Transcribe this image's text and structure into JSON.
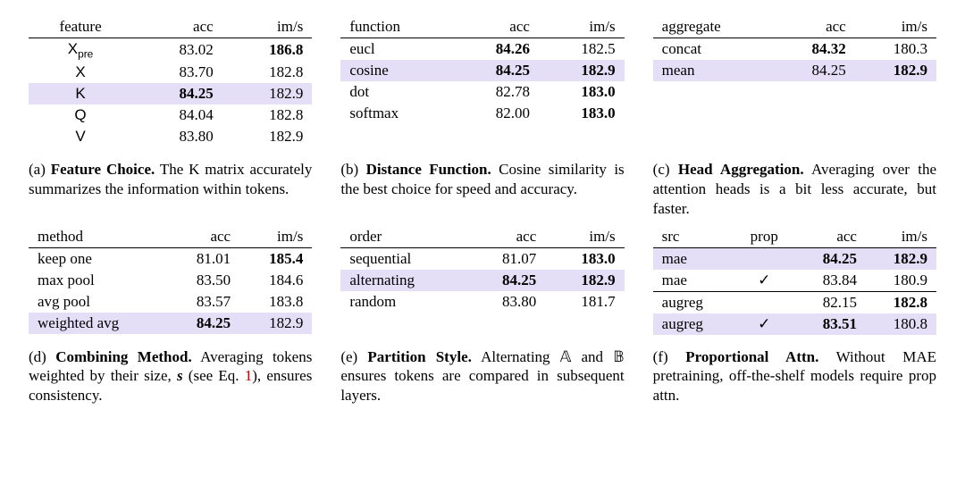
{
  "colors": {
    "highlight_bg": "#e4def6",
    "text": "#000000",
    "rule": "#000000",
    "ref_red": "#cc0000"
  },
  "typography": {
    "family": "Georgia / Times-like serif",
    "base_size_pt": 13,
    "caption_size_pt": 13,
    "line_height": 1.28
  },
  "panels": {
    "a": {
      "headers": [
        "feature",
        "acc",
        "im/s"
      ],
      "rows": [
        {
          "cells": [
            "Xpre",
            "83.02",
            "186.8"
          ],
          "bold": [
            false,
            false,
            true
          ],
          "hl": false,
          "feature_style": "x_sub_pre"
        },
        {
          "cells": [
            "X",
            "83.70",
            "182.8"
          ],
          "bold": [
            false,
            false,
            false
          ],
          "hl": false,
          "feature_style": "sans"
        },
        {
          "cells": [
            "K",
            "84.25",
            "182.9"
          ],
          "bold": [
            false,
            true,
            false
          ],
          "hl": true,
          "feature_style": "sans"
        },
        {
          "cells": [
            "Q",
            "84.04",
            "182.8"
          ],
          "bold": [
            false,
            false,
            false
          ],
          "hl": false,
          "feature_style": "sans"
        },
        {
          "cells": [
            "V",
            "83.80",
            "182.9"
          ],
          "bold": [
            false,
            false,
            false
          ],
          "hl": false,
          "feature_style": "sans"
        }
      ],
      "first_col_align": "center",
      "caption": {
        "tag": "(a)",
        "title": "Feature Choice.",
        "text": "The K matrix accurately summarizes the information within tokens."
      }
    },
    "b": {
      "headers": [
        "function",
        "acc",
        "im/s"
      ],
      "rows": [
        {
          "cells": [
            "eucl",
            "84.26",
            "182.5"
          ],
          "bold": [
            false,
            true,
            false
          ],
          "hl": false
        },
        {
          "cells": [
            "cosine",
            "84.25",
            "182.9"
          ],
          "bold": [
            false,
            true,
            true
          ],
          "hl": true
        },
        {
          "cells": [
            "dot",
            "82.78",
            "183.0"
          ],
          "bold": [
            false,
            false,
            true
          ],
          "hl": false
        },
        {
          "cells": [
            "softmax",
            "82.00",
            "183.0"
          ],
          "bold": [
            false,
            false,
            true
          ],
          "hl": false
        }
      ],
      "caption": {
        "tag": "(b)",
        "title": "Distance Function.",
        "text": "Cosine similarity is the best choice for speed and accuracy."
      }
    },
    "c": {
      "headers": [
        "aggregate",
        "acc",
        "im/s"
      ],
      "rows": [
        {
          "cells": [
            "concat",
            "84.32",
            "180.3"
          ],
          "bold": [
            false,
            true,
            false
          ],
          "hl": false
        },
        {
          "cells": [
            "mean",
            "84.25",
            "182.9"
          ],
          "bold": [
            false,
            false,
            true
          ],
          "hl": true
        }
      ],
      "caption": {
        "tag": "(c)",
        "title": "Head Aggregation.",
        "text": "Averaging over the attention heads is a bit less accurate, but faster."
      }
    },
    "d": {
      "headers": [
        "method",
        "acc",
        "im/s"
      ],
      "rows": [
        {
          "cells": [
            "keep one",
            "81.01",
            "185.4"
          ],
          "bold": [
            false,
            false,
            true
          ],
          "hl": false
        },
        {
          "cells": [
            "max pool",
            "83.50",
            "184.6"
          ],
          "bold": [
            false,
            false,
            false
          ],
          "hl": false
        },
        {
          "cells": [
            "avg pool",
            "83.57",
            "183.8"
          ],
          "bold": [
            false,
            false,
            false
          ],
          "hl": false
        },
        {
          "cells": [
            "weighted avg",
            "84.25",
            "182.9"
          ],
          "bold": [
            false,
            true,
            false
          ],
          "hl": true
        }
      ],
      "caption": {
        "tag": "(d)",
        "title": "Combining Method.",
        "text_html": "Averaging tokens weighted by their size, <b><i>s</i></b> (see Eq. <span class=\"redref\">1</span>), ensures consistency."
      }
    },
    "e": {
      "headers": [
        "order",
        "acc",
        "im/s"
      ],
      "rows": [
        {
          "cells": [
            "sequential",
            "81.07",
            "183.0"
          ],
          "bold": [
            false,
            false,
            true
          ],
          "hl": false
        },
        {
          "cells": [
            "alternating",
            "84.25",
            "182.9"
          ],
          "bold": [
            false,
            true,
            true
          ],
          "hl": true
        },
        {
          "cells": [
            "random",
            "83.80",
            "181.7"
          ],
          "bold": [
            false,
            false,
            false
          ],
          "hl": false
        }
      ],
      "caption": {
        "tag": "(e)",
        "title": "Partition Style.",
        "text_html": "Alternating <span class=\"dbl\">𝔸</span> and <span class=\"dbl\">𝔹</span> ensures tokens are compared in subsequent layers."
      }
    },
    "f": {
      "headers": [
        "src",
        "prop",
        "acc",
        "im/s"
      ],
      "rows": [
        {
          "cells": [
            "mae",
            "",
            "84.25",
            "182.9"
          ],
          "bold": [
            false,
            false,
            true,
            true
          ],
          "hl": true
        },
        {
          "cells": [
            "mae",
            "✓",
            "83.84",
            "180.9"
          ],
          "bold": [
            false,
            false,
            false,
            false
          ],
          "hl": false
        },
        {
          "cells": [
            "augreg",
            "",
            "82.15",
            "182.8"
          ],
          "bold": [
            false,
            false,
            false,
            true
          ],
          "hl": false,
          "sep": true
        },
        {
          "cells": [
            "augreg",
            "✓",
            "83.51",
            "180.8"
          ],
          "bold": [
            false,
            false,
            true,
            false
          ],
          "hl": true
        }
      ],
      "caption": {
        "tag": "(f)",
        "title": "Proportional Attn.",
        "text": "Without MAE pretraining, off-the-shelf models require prop attn."
      }
    }
  }
}
